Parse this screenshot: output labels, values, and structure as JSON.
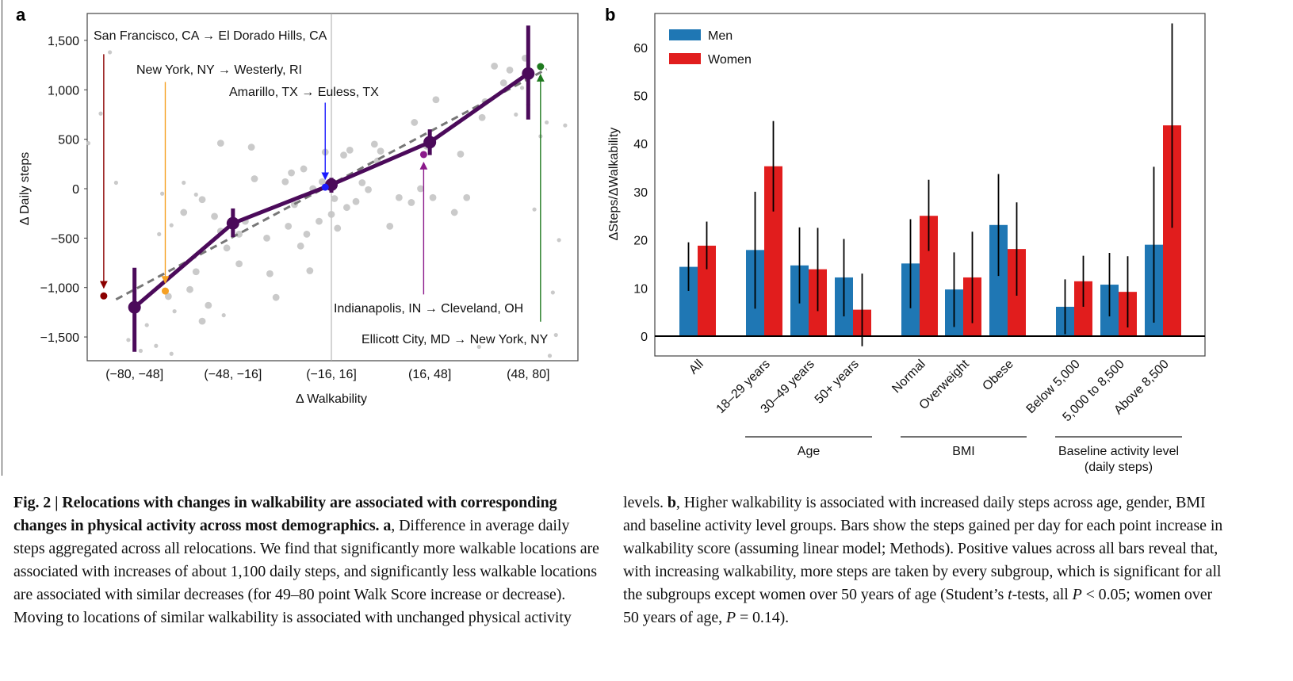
{
  "panel_a": {
    "letter": "a"
  },
  "panel_b": {
    "letter": "b"
  },
  "chart_data": [
    {
      "type": "line",
      "panel": "a",
      "xlabel": "Δ Walkability",
      "ylabel": "Δ Daily steps",
      "xlim": [
        -80,
        80
      ],
      "ylim": [
        -1700,
        1750
      ],
      "yticks": [
        1500,
        1000,
        500,
        0,
        -500,
        -1000,
        -1500
      ],
      "ytick_labels": [
        "1,500",
        "1,000",
        "500",
        "0",
        "−500",
        "−1,000",
        "−1,500"
      ],
      "categories": [
        "(−80, −48]",
        "(−48, −16]",
        "(−16, 16]",
        "(16, 48]",
        "(48, 80]"
      ],
      "category_centers": [
        -64,
        -32,
        0,
        32,
        64
      ],
      "mean_series": {
        "color": "#4b0a5a",
        "values": [
          -1200,
          -350,
          40,
          470,
          1165
        ],
        "err_low": [
          -1650,
          -490,
          -40,
          340,
          700
        ],
        "err_high": [
          -800,
          -200,
          110,
          600,
          1650
        ]
      },
      "fit_line": {
        "color": "#777777",
        "style": "dashed",
        "from": [
          -70,
          -1120
        ],
        "to": [
          70,
          1210
        ]
      },
      "reference_line_x": 0,
      "scatter": [
        [
          -72,
          1380,
          1
        ],
        [
          -75,
          760,
          1
        ],
        [
          -79,
          460,
          1
        ],
        [
          -70,
          60,
          1
        ],
        [
          -56,
          -460,
          1
        ],
        [
          -60,
          -1380,
          1
        ],
        [
          -66,
          -1530,
          1
        ],
        [
          -52,
          -1670,
          1
        ],
        [
          -51,
          -1240,
          1
        ],
        [
          -57,
          -1590,
          1
        ],
        [
          -53,
          -1090,
          2
        ],
        [
          -46,
          -1020,
          2
        ],
        [
          -40,
          -1180,
          2
        ],
        [
          -44,
          -840,
          2
        ],
        [
          -42,
          -1340,
          2
        ],
        [
          -48,
          60,
          1
        ],
        [
          -55,
          -50,
          1
        ],
        [
          -48,
          -240,
          2
        ],
        [
          -52,
          -370,
          1
        ],
        [
          -44,
          -60,
          1
        ],
        [
          -42,
          -110,
          2
        ],
        [
          -38,
          -280,
          2
        ],
        [
          -36,
          -430,
          2
        ],
        [
          -30,
          -460,
          2
        ],
        [
          -34,
          -600,
          2
        ],
        [
          -30,
          -760,
          2
        ],
        [
          -28,
          -330,
          2
        ],
        [
          -25,
          100,
          2
        ],
        [
          -36,
          460,
          2
        ],
        [
          -26,
          420,
          2
        ],
        [
          -21,
          -500,
          2
        ],
        [
          -20,
          -860,
          2
        ],
        [
          -18,
          -1100,
          2
        ],
        [
          -14,
          -380,
          2
        ],
        [
          -10,
          -580,
          2
        ],
        [
          -8,
          -460,
          2
        ],
        [
          -4,
          -330,
          2
        ],
        [
          -7,
          -830,
          2
        ],
        [
          -12,
          -160,
          2
        ],
        [
          -13,
          160,
          2
        ],
        [
          -6,
          0,
          2
        ],
        [
          -3,
          70,
          2
        ],
        [
          -9,
          200,
          2
        ],
        [
          -15,
          70,
          2
        ],
        [
          -2,
          370,
          2
        ],
        [
          4,
          340,
          2
        ],
        [
          6,
          390,
          2
        ],
        [
          0,
          -260,
          2
        ],
        [
          1,
          -100,
          2
        ],
        [
          2,
          -400,
          2
        ],
        [
          5,
          -190,
          2
        ],
        [
          8,
          -130,
          2
        ],
        [
          10,
          60,
          2
        ],
        [
          12,
          -10,
          2
        ],
        [
          15,
          280,
          2
        ],
        [
          14,
          450,
          2
        ],
        [
          16,
          380,
          2
        ],
        [
          19,
          -380,
          2
        ],
        [
          22,
          -90,
          2
        ],
        [
          26,
          -140,
          2
        ],
        [
          29,
          0,
          2
        ],
        [
          31,
          430,
          2
        ],
        [
          33,
          -90,
          2
        ],
        [
          27,
          670,
          2
        ],
        [
          34,
          900,
          2
        ],
        [
          40,
          -240,
          2
        ],
        [
          44,
          -90,
          2
        ],
        [
          42,
          350,
          2
        ],
        [
          49,
          720,
          2
        ],
        [
          50,
          880,
          2
        ],
        [
          56,
          1070,
          2
        ],
        [
          63,
          1320,
          2
        ],
        [
          60,
          750,
          1
        ],
        [
          64,
          850,
          1
        ],
        [
          58,
          1200,
          2
        ],
        [
          53,
          1240,
          2
        ],
        [
          62,
          1020,
          1
        ],
        [
          70,
          670,
          1
        ],
        [
          68,
          530,
          1
        ],
        [
          66,
          -210,
          1
        ],
        [
          76,
          640,
          1
        ],
        [
          74,
          -520,
          1
        ],
        [
          72,
          -1050,
          1
        ],
        [
          73,
          -1480,
          1
        ],
        [
          71,
          -1690,
          1
        ],
        [
          48,
          -1600,
          1
        ],
        [
          -62,
          -1640,
          1
        ],
        [
          -35,
          -1280,
          1
        ]
      ],
      "highlighted_relocations": [
        {
          "label": "San Francisco, CA → El Dorado Hills, CA",
          "color": "#8b0000",
          "x": -74,
          "y": -1085,
          "arrow_from_y": 1360
        },
        {
          "label": "New York, NY → Westerly, RI",
          "color": "#f5a023",
          "x": -54,
          "y": -1035,
          "arrow_from_y": 1080
        },
        {
          "label": "Amarillo, TX → Euless, TX",
          "color": "#1a1aff",
          "x": -2,
          "y": 15,
          "arrow_from_y": 870
        },
        {
          "label": "Indianapolis, IN → Cleveland, OH",
          "color": "#8b1a8b",
          "x": 30,
          "y": 345,
          "arrow_from_y": -1070
        },
        {
          "label": "Ellicott City, MD → New York, NY",
          "color": "#1f7a1f",
          "x": 68,
          "y": 1235,
          "arrow_from_y": -1345
        }
      ]
    },
    {
      "type": "bar",
      "panel": "b",
      "ylabel": "ΔSteps/ΔWalkability",
      "ylim": [
        -4,
        67
      ],
      "yticks": [
        0,
        10,
        20,
        30,
        40,
        50,
        60
      ],
      "categories": [
        "All",
        "18–29 years",
        "30–49 years",
        "50+ years",
        "Normal",
        "Overweight",
        "Obese",
        "Below 5,000",
        "5,000 to 8,500",
        "Above 8,500"
      ],
      "category_groups": [
        {
          "label": "Age",
          "members": [
            1,
            2,
            3
          ]
        },
        {
          "label": "BMI",
          "members": [
            4,
            5,
            6
          ]
        },
        {
          "label": "Baseline activity level\n(daily steps)",
          "label_lines": [
            "Baseline activity level",
            "(daily steps)"
          ],
          "members": [
            7,
            8,
            9
          ]
        }
      ],
      "legend": {
        "position": "top-left"
      },
      "series": [
        {
          "name": "Men",
          "color": "#1f77b4",
          "values": [
            14.4,
            17.9,
            14.7,
            12.2,
            15.1,
            9.7,
            23.1,
            6.1,
            10.7,
            19.0
          ],
          "err_low": [
            9.4,
            5.7,
            6.8,
            4.1,
            5.8,
            1.9,
            12.5,
            0.4,
            4.1,
            2.8
          ],
          "err_high": [
            19.5,
            30.0,
            22.6,
            20.2,
            24.3,
            17.4,
            33.7,
            11.8,
            17.3,
            35.2
          ]
        },
        {
          "name": "Women",
          "color": "#e11d1d",
          "values": [
            18.8,
            35.3,
            13.9,
            5.5,
            25.0,
            12.2,
            18.1,
            11.4,
            9.2,
            43.8
          ],
          "err_low": [
            13.9,
            25.9,
            5.2,
            -2.1,
            17.7,
            2.7,
            8.4,
            6.1,
            1.8,
            22.5
          ],
          "err_high": [
            23.8,
            44.7,
            22.5,
            13.0,
            32.5,
            21.7,
            27.8,
            16.7,
            16.6,
            65.0
          ]
        }
      ]
    }
  ],
  "caption": {
    "fig_label": "Fig. 2 | ",
    "title": "Relocations with changes in walkability are associated with corresponding changes in physical activity across most demographics.",
    "a_label": "a",
    "a_text": ", Difference in average daily steps aggregated across all relocations. We find that significantly more walkable locations are associated with increases of about 1,100 daily steps, and significantly less walkable locations are associated with similar decreases (for 49–80 point Walk Score increase or decrease). Moving to locations of similar walkability is associated with unchanged physical activity",
    "a_text_cont": "levels. ",
    "b_label": "b",
    "b_text_1": ", Higher walkability is associated with increased daily steps across age, gender, BMI and baseline activity level groups. Bars show the steps gained per day for each point increase in walkability score (assuming linear model; Methods). Positive values across all bars reveal that, with increasing walkability, more steps are taken by every subgroup, which is significant for all the subgroups except women over 50 years of age (Student’s ",
    "b_t": "t",
    "b_text_2": "-tests, all ",
    "b_p1": "P",
    "b_text_3": " < 0.05; women over 50 years of age, ",
    "b_p2": "P",
    "b_text_4": " = 0.14)."
  }
}
